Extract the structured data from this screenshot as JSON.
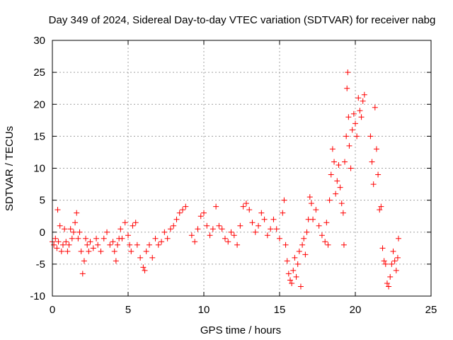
{
  "chart_data": {
    "type": "scatter",
    "title": "Day 349 of 2024, Sidereal Day-to-day VTEC variation (SDTVAR) for receiver nabg",
    "xlabel": "GPS time / hours",
    "ylabel": "SDTVAR / TECUs",
    "xlim": [
      0,
      25
    ],
    "ylim": [
      -10,
      30
    ],
    "xticks": [
      0,
      5,
      10,
      15,
      20,
      25
    ],
    "yticks": [
      -10,
      -5,
      0,
      5,
      10,
      15,
      20,
      25,
      30
    ],
    "grid": true,
    "marker": "+",
    "marker_color": "#ff0000",
    "series": [
      {
        "name": "SDTVAR",
        "points": [
          [
            0.0,
            -1.5
          ],
          [
            0.1,
            -2.0
          ],
          [
            0.2,
            -1.0
          ],
          [
            0.3,
            -2.5
          ],
          [
            0.35,
            3.5
          ],
          [
            0.4,
            -1.5
          ],
          [
            0.5,
            1.0
          ],
          [
            0.6,
            -3.0
          ],
          [
            0.7,
            -2.0
          ],
          [
            0.8,
            0.5
          ],
          [
            0.9,
            -1.5
          ],
          [
            1.0,
            -3.0
          ],
          [
            1.1,
            -2.0
          ],
          [
            1.2,
            0.5
          ],
          [
            1.3,
            -1.0
          ],
          [
            1.4,
            0.0
          ],
          [
            1.5,
            1.5
          ],
          [
            1.6,
            3.0
          ],
          [
            1.7,
            -1.0
          ],
          [
            1.8,
            0.0
          ],
          [
            1.9,
            -3.0
          ],
          [
            2.0,
            -6.5
          ],
          [
            2.1,
            -4.5
          ],
          [
            2.2,
            -1.0
          ],
          [
            2.3,
            -2.0
          ],
          [
            2.4,
            -3.0
          ],
          [
            2.5,
            -1.5
          ],
          [
            2.7,
            -2.5
          ],
          [
            2.9,
            -1.0
          ],
          [
            3.0,
            -2.0
          ],
          [
            3.2,
            -3.0
          ],
          [
            3.4,
            -1.0
          ],
          [
            3.6,
            0.0
          ],
          [
            3.8,
            -2.0
          ],
          [
            4.0,
            -1.5
          ],
          [
            4.1,
            -3.0
          ],
          [
            4.2,
            -4.5
          ],
          [
            4.3,
            -2.0
          ],
          [
            4.4,
            -1.0
          ],
          [
            4.5,
            0.5
          ],
          [
            4.6,
            -1.0
          ],
          [
            4.8,
            1.5
          ],
          [
            5.0,
            -0.5
          ],
          [
            5.1,
            -2.0
          ],
          [
            5.2,
            -3.0
          ],
          [
            5.3,
            1.0
          ],
          [
            5.5,
            1.5
          ],
          [
            5.6,
            -2.0
          ],
          [
            5.8,
            -4.0
          ],
          [
            6.0,
            -5.5
          ],
          [
            6.1,
            -6.0
          ],
          [
            6.2,
            -3.0
          ],
          [
            6.4,
            -2.0
          ],
          [
            6.6,
            -4.0
          ],
          [
            6.8,
            -1.0
          ],
          [
            7.0,
            -2.0
          ],
          [
            7.2,
            -1.5
          ],
          [
            7.4,
            0.0
          ],
          [
            7.6,
            -1.0
          ],
          [
            7.8,
            0.5
          ],
          [
            8.0,
            1.0
          ],
          [
            8.2,
            2.0
          ],
          [
            8.4,
            3.0
          ],
          [
            8.6,
            3.5
          ],
          [
            8.8,
            4.0
          ],
          [
            9.2,
            -0.5
          ],
          [
            9.4,
            -1.5
          ],
          [
            9.6,
            0.5
          ],
          [
            9.8,
            2.5
          ],
          [
            10.0,
            3.0
          ],
          [
            10.2,
            1.0
          ],
          [
            10.4,
            -0.5
          ],
          [
            10.6,
            0.5
          ],
          [
            10.8,
            4.0
          ],
          [
            11.0,
            1.0
          ],
          [
            11.2,
            0.5
          ],
          [
            11.4,
            -1.0
          ],
          [
            11.6,
            -1.5
          ],
          [
            11.8,
            0.0
          ],
          [
            12.0,
            -0.5
          ],
          [
            12.2,
            -2.0
          ],
          [
            12.4,
            1.0
          ],
          [
            12.6,
            4.0
          ],
          [
            12.8,
            4.5
          ],
          [
            13.0,
            3.5
          ],
          [
            13.2,
            1.5
          ],
          [
            13.4,
            0.0
          ],
          [
            13.6,
            1.0
          ],
          [
            13.8,
            3.0
          ],
          [
            14.0,
            2.0
          ],
          [
            14.2,
            -0.5
          ],
          [
            14.4,
            0.5
          ],
          [
            14.6,
            2.0
          ],
          [
            14.8,
            0.5
          ],
          [
            15.0,
            -1.0
          ],
          [
            15.2,
            3.0
          ],
          [
            15.3,
            5.0
          ],
          [
            15.4,
            -2.0
          ],
          [
            15.5,
            -4.5
          ],
          [
            15.6,
            -6.5
          ],
          [
            15.7,
            -7.5
          ],
          [
            15.8,
            -8.0
          ],
          [
            15.9,
            -6.0
          ],
          [
            16.0,
            -4.0
          ],
          [
            16.1,
            -7.0
          ],
          [
            16.2,
            -5.0
          ],
          [
            16.3,
            -3.0
          ],
          [
            16.4,
            -8.5
          ],
          [
            16.5,
            -2.0
          ],
          [
            16.6,
            -1.0
          ],
          [
            16.7,
            -3.5
          ],
          [
            16.8,
            0.0
          ],
          [
            16.9,
            2.0
          ],
          [
            17.0,
            5.5
          ],
          [
            17.1,
            4.5
          ],
          [
            17.2,
            2.0
          ],
          [
            17.4,
            3.5
          ],
          [
            17.6,
            1.0
          ],
          [
            17.8,
            -0.5
          ],
          [
            18.0,
            -1.5
          ],
          [
            18.1,
            1.5
          ],
          [
            18.2,
            -2.0
          ],
          [
            18.3,
            5.0
          ],
          [
            18.4,
            9.0
          ],
          [
            18.5,
            13.0
          ],
          [
            18.6,
            11.0
          ],
          [
            18.7,
            6.0
          ],
          [
            18.8,
            8.0
          ],
          [
            18.9,
            10.5
          ],
          [
            19.0,
            7.0
          ],
          [
            19.1,
            4.5
          ],
          [
            19.2,
            3.0
          ],
          [
            19.25,
            -2.0
          ],
          [
            19.3,
            11.0
          ],
          [
            19.4,
            15.0
          ],
          [
            19.45,
            22.5
          ],
          [
            19.5,
            25.0
          ],
          [
            19.55,
            18.0
          ],
          [
            19.6,
            13.5
          ],
          [
            19.7,
            10.0
          ],
          [
            19.8,
            16.0
          ],
          [
            19.9,
            18.5
          ],
          [
            20.0,
            17.0
          ],
          [
            20.1,
            15.0
          ],
          [
            20.2,
            21.0
          ],
          [
            20.3,
            19.0
          ],
          [
            20.4,
            18.0
          ],
          [
            20.5,
            20.5
          ],
          [
            20.6,
            21.5
          ],
          [
            21.0,
            15.0
          ],
          [
            21.1,
            11.0
          ],
          [
            21.2,
            7.5
          ],
          [
            21.3,
            19.5
          ],
          [
            21.4,
            13.0
          ],
          [
            21.5,
            9.0
          ],
          [
            21.6,
            3.5
          ],
          [
            21.7,
            4.0
          ],
          [
            21.8,
            -2.5
          ],
          [
            21.9,
            -4.5
          ],
          [
            22.0,
            -5.0
          ],
          [
            22.1,
            -8.0
          ],
          [
            22.2,
            -8.5
          ],
          [
            22.3,
            -7.0
          ],
          [
            22.4,
            -5.0
          ],
          [
            22.5,
            -3.0
          ],
          [
            22.6,
            -4.5
          ],
          [
            22.7,
            -6.0
          ],
          [
            22.8,
            -4.0
          ],
          [
            22.85,
            -1.0
          ]
        ]
      }
    ]
  }
}
